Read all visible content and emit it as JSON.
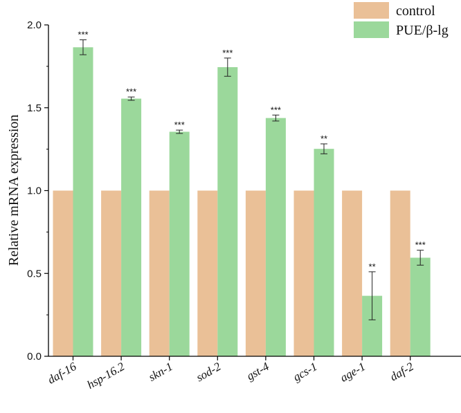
{
  "chart_data": {
    "type": "bar",
    "title": "",
    "xlabel": "",
    "ylabel": "Relative mRNA expression",
    "ylim": [
      0,
      2.0
    ],
    "yticks": [
      0.0,
      0.5,
      1.0,
      1.5,
      2.0
    ],
    "ytick_labels": [
      "0.0",
      "0.5",
      "1.0",
      "1.5",
      "2.0"
    ],
    "categories": [
      "daf-16",
      "hsp-16.2",
      "skn-1",
      "sod-2",
      "gst-4",
      "gcs-1",
      "age-1",
      "daf-2"
    ],
    "series": [
      {
        "name": "control",
        "color": "#EAC097",
        "values": [
          1.0,
          1.0,
          1.0,
          1.0,
          1.0,
          1.0,
          1.0,
          1.0
        ]
      },
      {
        "name": "PUE/β-lg",
        "color": "#9BD89B",
        "values": [
          1.865,
          1.555,
          1.355,
          1.745,
          1.438,
          1.252,
          0.365,
          0.595
        ],
        "errors": [
          0.045,
          0.01,
          0.01,
          0.055,
          0.018,
          0.03,
          0.145,
          0.045
        ],
        "significance": [
          "***",
          "***",
          "***",
          "***",
          "***",
          "**",
          "**",
          "***"
        ]
      }
    ],
    "legend_position": "top-right",
    "grid": false
  }
}
